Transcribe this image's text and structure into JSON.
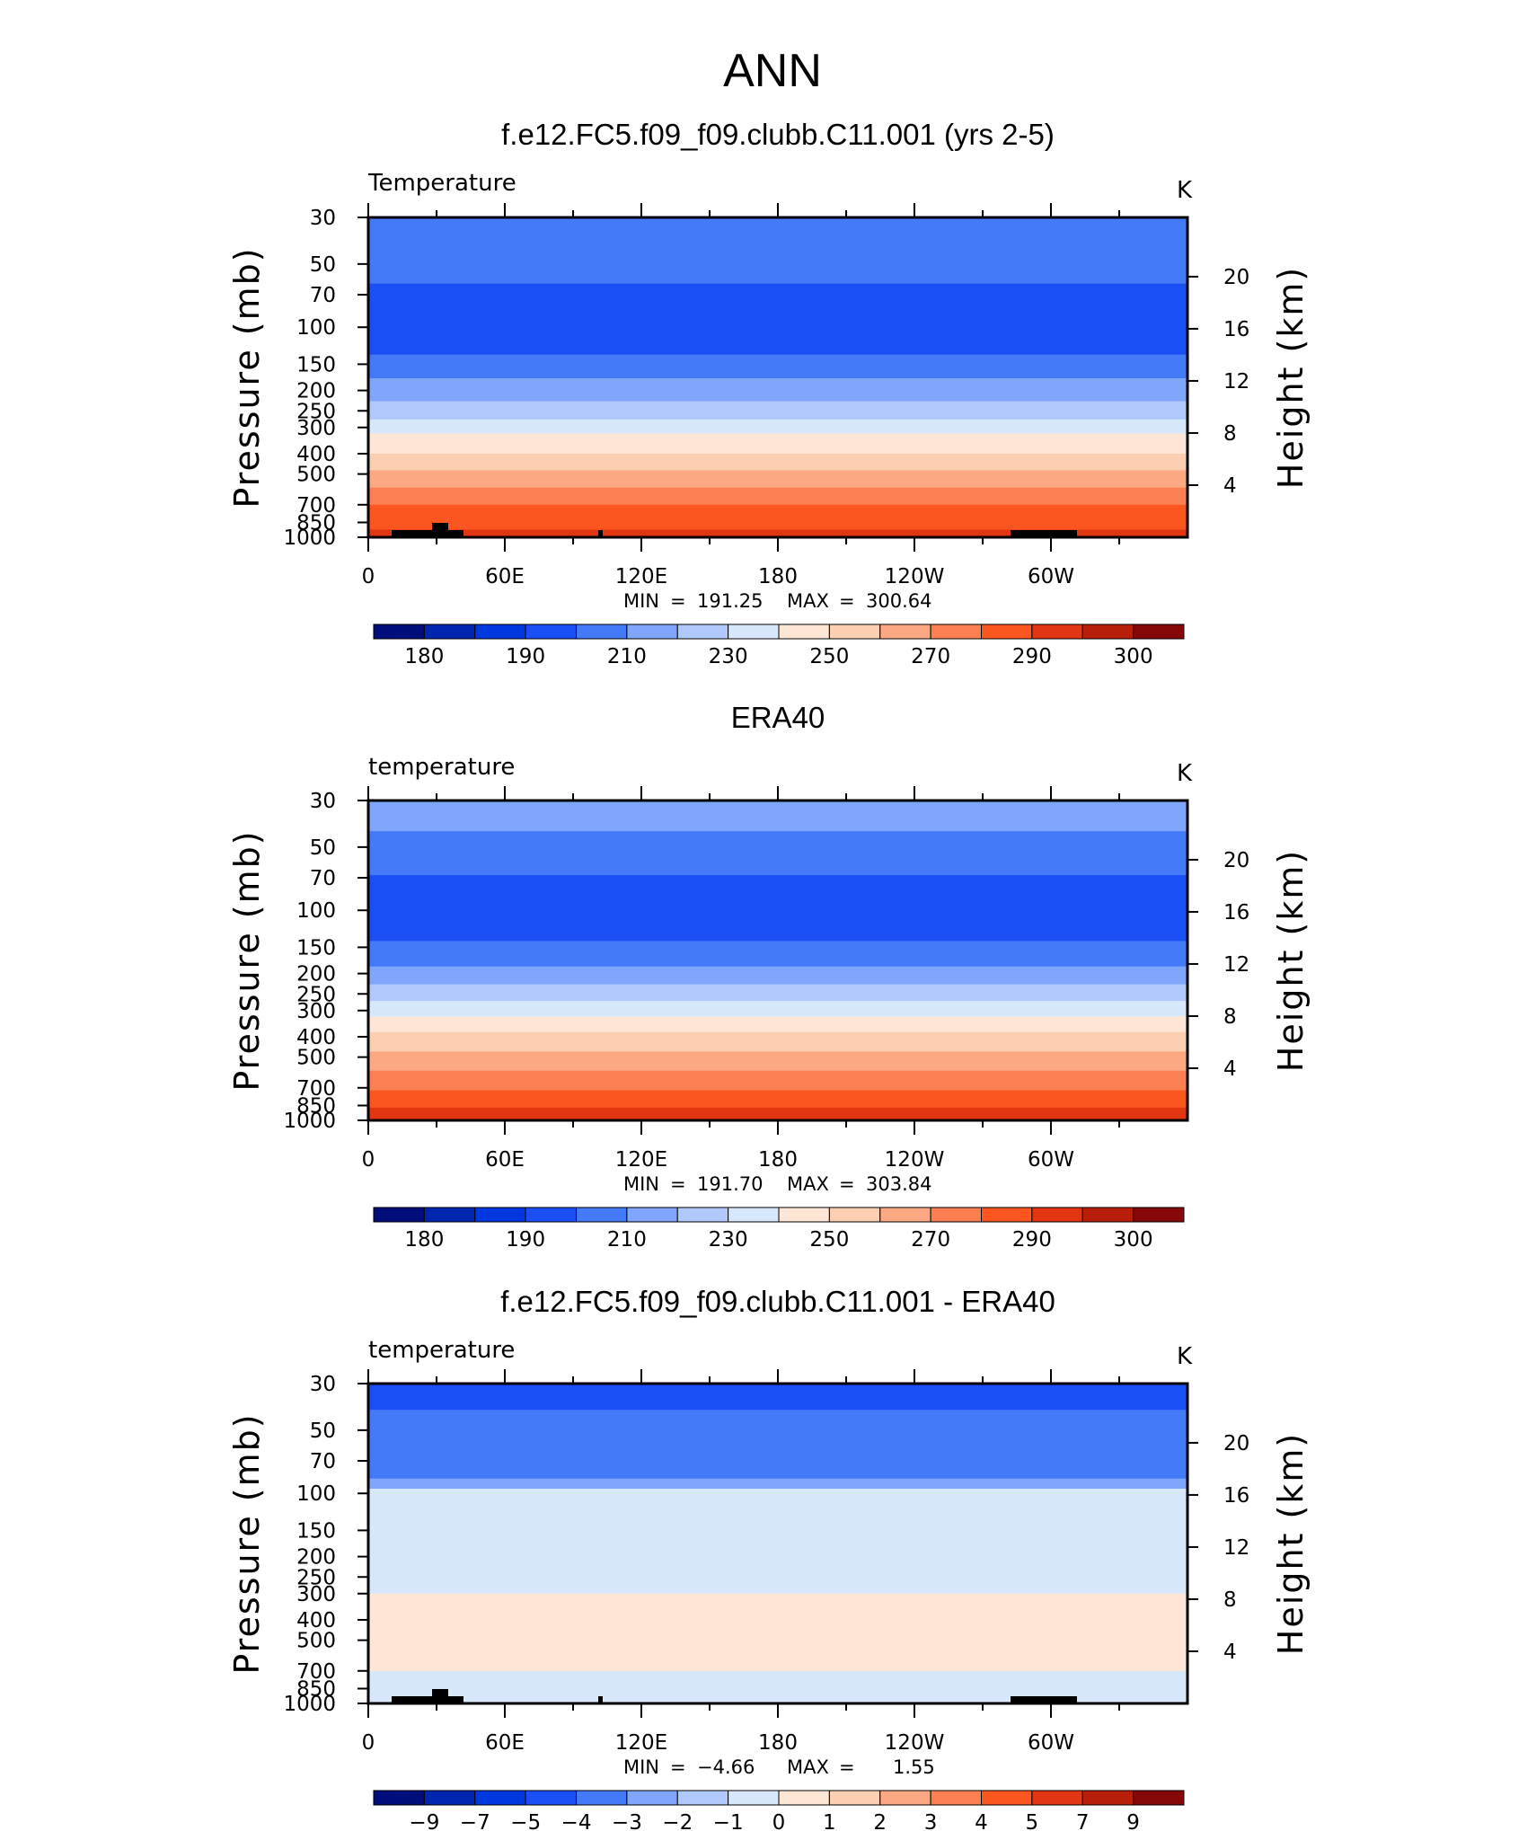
{
  "main_title": "ANN",
  "chart_data": [
    {
      "type": "heatmap",
      "title": "f.e12.FC5.f09_f09.clubb.C11.001 (yrs 2-5)",
      "variable_label": "Temperature",
      "units": "K",
      "ylabel": "Pressure (mb)",
      "y2label": "Height (km)",
      "y_ticks": [
        "30",
        "50",
        "70",
        "100",
        "150",
        "200",
        "250",
        "300",
        "400",
        "500",
        "700",
        "850",
        "1000"
      ],
      "y2_ticks": [
        "20",
        "16",
        "12",
        "8",
        "4"
      ],
      "x_ticks": [
        "0",
        "60E",
        "120E",
        "180",
        "120W",
        "60W"
      ],
      "min_label": "MIN",
      "max_label": "MAX",
      "min": "191.25",
      "max": "300.64",
      "colorbar_labels": [
        "180",
        "190",
        "210",
        "230",
        "250",
        "270",
        "290",
        "300"
      ],
      "bands": [
        {
          "p_top": 30,
          "p_bot": 37,
          "level": 4
        },
        {
          "p_top": 37,
          "p_bot": 62,
          "level": 4
        },
        {
          "p_top": 62,
          "p_bot": 135,
          "level": 3
        },
        {
          "p_top": 135,
          "p_bot": 175,
          "level": 4
        },
        {
          "p_top": 175,
          "p_bot": 225,
          "level": 5
        },
        {
          "p_top": 225,
          "p_bot": 275,
          "level": 6
        },
        {
          "p_top": 275,
          "p_bot": 320,
          "level": 7
        },
        {
          "p_top": 320,
          "p_bot": 400,
          "level": 8
        },
        {
          "p_top": 400,
          "p_bot": 480,
          "level": 9
        },
        {
          "p_top": 480,
          "p_bot": 580,
          "level": 10
        },
        {
          "p_top": 580,
          "p_bot": 700,
          "level": 11
        },
        {
          "p_top": 700,
          "p_bot": 920,
          "level": 12
        },
        {
          "p_top": 920,
          "p_bot": 1000,
          "level": 13
        }
      ],
      "topography": true
    },
    {
      "type": "heatmap",
      "title": "ERA40",
      "variable_label": "temperature",
      "units": "K",
      "ylabel": "Pressure (mb)",
      "y2label": "Height (km)",
      "y_ticks": [
        "30",
        "50",
        "70",
        "100",
        "150",
        "200",
        "250",
        "300",
        "400",
        "500",
        "700",
        "850",
        "1000"
      ],
      "y2_ticks": [
        "20",
        "16",
        "12",
        "8",
        "4"
      ],
      "x_ticks": [
        "0",
        "60E",
        "120E",
        "180",
        "120W",
        "60W"
      ],
      "min_label": "MIN",
      "max_label": "MAX",
      "min": "191.70",
      "max": "303.84",
      "colorbar_labels": [
        "180",
        "190",
        "210",
        "230",
        "250",
        "270",
        "290",
        "300"
      ],
      "bands": [
        {
          "p_top": 30,
          "p_bot": 42,
          "level": 5
        },
        {
          "p_top": 42,
          "p_bot": 68,
          "level": 4
        },
        {
          "p_top": 68,
          "p_bot": 140,
          "level": 3
        },
        {
          "p_top": 140,
          "p_bot": 185,
          "level": 4
        },
        {
          "p_top": 185,
          "p_bot": 225,
          "level": 5
        },
        {
          "p_top": 225,
          "p_bot": 270,
          "level": 6
        },
        {
          "p_top": 270,
          "p_bot": 320,
          "level": 7
        },
        {
          "p_top": 320,
          "p_bot": 380,
          "level": 8
        },
        {
          "p_top": 380,
          "p_bot": 470,
          "level": 9
        },
        {
          "p_top": 470,
          "p_bot": 580,
          "level": 10
        },
        {
          "p_top": 580,
          "p_bot": 720,
          "level": 11
        },
        {
          "p_top": 720,
          "p_bot": 870,
          "level": 12
        },
        {
          "p_top": 870,
          "p_bot": 1000,
          "level": 13
        }
      ],
      "topography": false
    },
    {
      "type": "heatmap",
      "title": "f.e12.FC5.f09_f09.clubb.C11.001 - ERA40",
      "variable_label": "temperature",
      "units": "K",
      "ylabel": "Pressure (mb)",
      "y2label": "Height (km)",
      "y_ticks": [
        "30",
        "50",
        "70",
        "100",
        "150",
        "200",
        "250",
        "300",
        "400",
        "500",
        "700",
        "850",
        "1000"
      ],
      "y2_ticks": [
        "20",
        "16",
        "12",
        "8",
        "4"
      ],
      "x_ticks": [
        "0",
        "60E",
        "120E",
        "180",
        "120W",
        "60W"
      ],
      "min_label": "MIN",
      "max_label": "MAX",
      "min": "−4.66",
      "max": "1.55",
      "colorbar_labels": [
        "−9",
        "−7",
        "−5",
        "−4",
        "−3",
        "−2",
        "−1",
        "0",
        "1",
        "2",
        "3",
        "4",
        "5",
        "7",
        "9"
      ],
      "bands": [
        {
          "p_top": 30,
          "p_bot": 40,
          "level": 3
        },
        {
          "p_top": 40,
          "p_bot": 85,
          "level": 4
        },
        {
          "p_top": 85,
          "p_bot": 95,
          "level": 5
        },
        {
          "p_top": 95,
          "p_bot": 300,
          "level": 7
        },
        {
          "p_top": 300,
          "p_bot": 700,
          "level": 8
        },
        {
          "p_top": 700,
          "p_bot": 1000,
          "level": 7
        }
      ],
      "topography": true
    }
  ],
  "colors": {
    "palette": [
      "#000e7c",
      "#0026b0",
      "#0038e0",
      "#1a4ff5",
      "#4479f8",
      "#7fa6fa",
      "#b0c8fc",
      "#d8e8fb",
      "#fde6d6",
      "#fccfb3",
      "#fba883",
      "#fb7f51",
      "#fb5520",
      "#e23512",
      "#b81f0b",
      "#850707"
    ],
    "frame": "#000000",
    "topography": "#000000"
  }
}
